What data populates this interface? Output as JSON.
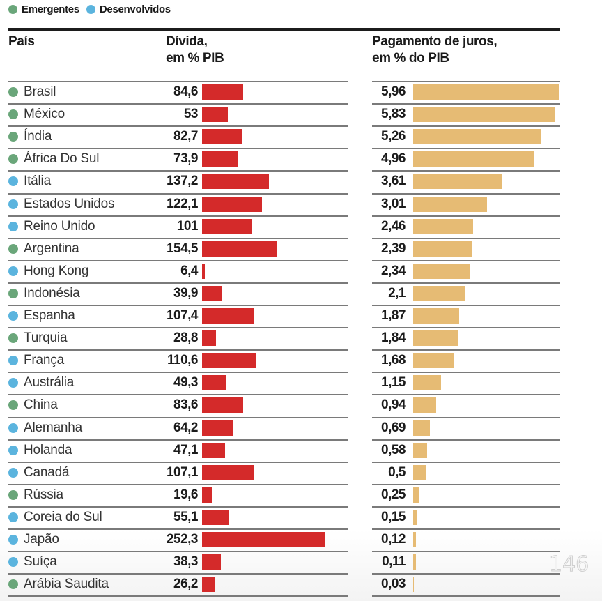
{
  "legend": {
    "items": [
      {
        "label": "Emergentes",
        "color": "#6aa67a"
      },
      {
        "label": "Desenvolvidos",
        "color": "#5bb4de"
      }
    ]
  },
  "headers": {
    "country": "País",
    "debt_line1": "Dívida,",
    "debt_line2": "em % PIB",
    "interest_line1": "Pagamento de juros,",
    "interest_line2": "em % do PIB"
  },
  "colors": {
    "debt_bar": "#d42a2a",
    "interest_bar": "#e6bb74",
    "emergentes": "#6aa67a",
    "desenvolvidos": "#5bb4de"
  },
  "watermark": "146",
  "chart_data": {
    "type": "table",
    "title": "",
    "legend_placement": "top-left",
    "columns": [
      "País",
      "Dívida, em % PIB",
      "Pagamento de juros, em % do PIB"
    ],
    "debt_range": [
      0,
      252.3
    ],
    "interest_range": [
      0,
      5.96
    ],
    "rows": [
      {
        "country": "Brasil",
        "group": "Emergentes",
        "debt": 84.6,
        "debt_label": "84,6",
        "interest": 5.96,
        "interest_label": "5,96"
      },
      {
        "country": "México",
        "group": "Emergentes",
        "debt": 53,
        "debt_label": "53",
        "interest": 5.83,
        "interest_label": "5,83"
      },
      {
        "country": "Índia",
        "group": "Emergentes",
        "debt": 82.7,
        "debt_label": "82,7",
        "interest": 5.26,
        "interest_label": "5,26"
      },
      {
        "country": "África Do Sul",
        "group": "Emergentes",
        "debt": 73.9,
        "debt_label": "73,9",
        "interest": 4.96,
        "interest_label": "4,96"
      },
      {
        "country": "Itália",
        "group": "Desenvolvidos",
        "debt": 137.2,
        "debt_label": "137,2",
        "interest": 3.61,
        "interest_label": "3,61"
      },
      {
        "country": "Estados Unidos",
        "group": "Desenvolvidos",
        "debt": 122.1,
        "debt_label": "122,1",
        "interest": 3.01,
        "interest_label": "3,01"
      },
      {
        "country": "Reino Unido",
        "group": "Desenvolvidos",
        "debt": 101,
        "debt_label": "101",
        "interest": 2.46,
        "interest_label": "2,46"
      },
      {
        "country": "Argentina",
        "group": "Emergentes",
        "debt": 154.5,
        "debt_label": "154,5",
        "interest": 2.39,
        "interest_label": "2,39"
      },
      {
        "country": "Hong Kong",
        "group": "Desenvolvidos",
        "debt": 6.4,
        "debt_label": "6,4",
        "interest": 2.34,
        "interest_label": "2,34"
      },
      {
        "country": "Indonésia",
        "group": "Emergentes",
        "debt": 39.9,
        "debt_label": "39,9",
        "interest": 2.1,
        "interest_label": "2,1"
      },
      {
        "country": "Espanha",
        "group": "Desenvolvidos",
        "debt": 107.4,
        "debt_label": "107,4",
        "interest": 1.87,
        "interest_label": "1,87"
      },
      {
        "country": "Turquia",
        "group": "Emergentes",
        "debt": 28.8,
        "debt_label": "28,8",
        "interest": 1.84,
        "interest_label": "1,84"
      },
      {
        "country": "França",
        "group": "Desenvolvidos",
        "debt": 110.6,
        "debt_label": "110,6",
        "interest": 1.68,
        "interest_label": "1,68"
      },
      {
        "country": "Austrália",
        "group": "Desenvolvidos",
        "debt": 49.3,
        "debt_label": "49,3",
        "interest": 1.15,
        "interest_label": "1,15"
      },
      {
        "country": "China",
        "group": "Emergentes",
        "debt": 83.6,
        "debt_label": "83,6",
        "interest": 0.94,
        "interest_label": "0,94"
      },
      {
        "country": "Alemanha",
        "group": "Desenvolvidos",
        "debt": 64.2,
        "debt_label": "64,2",
        "interest": 0.69,
        "interest_label": "0,69"
      },
      {
        "country": "Holanda",
        "group": "Desenvolvidos",
        "debt": 47.1,
        "debt_label": "47,1",
        "interest": 0.58,
        "interest_label": "0,58"
      },
      {
        "country": "Canadá",
        "group": "Desenvolvidos",
        "debt": 107.1,
        "debt_label": "107,1",
        "interest": 0.5,
        "interest_label": "0,5"
      },
      {
        "country": "Rússia",
        "group": "Emergentes",
        "debt": 19.6,
        "debt_label": "19,6",
        "interest": 0.25,
        "interest_label": "0,25"
      },
      {
        "country": "Coreia do Sul",
        "group": "Desenvolvidos",
        "debt": 55.1,
        "debt_label": "55,1",
        "interest": 0.15,
        "interest_label": "0,15"
      },
      {
        "country": "Japão",
        "group": "Desenvolvidos",
        "debt": 252.3,
        "debt_label": "252,3",
        "interest": 0.12,
        "interest_label": "0,12"
      },
      {
        "country": "Suíça",
        "group": "Desenvolvidos",
        "debt": 38.3,
        "debt_label": "38,3",
        "interest": 0.11,
        "interest_label": "0,11"
      },
      {
        "country": "Arábia Saudita",
        "group": "Emergentes",
        "debt": 26.2,
        "debt_label": "26,2",
        "interest": 0.03,
        "interest_label": "0,03"
      }
    ]
  }
}
